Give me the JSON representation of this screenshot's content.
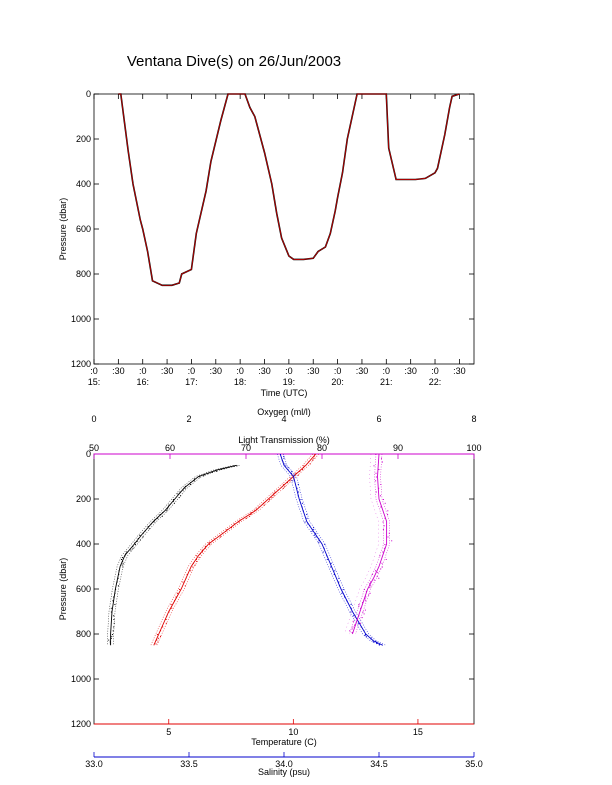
{
  "title": "Ventana Dive(s) on 26/Jun/2003",
  "colors": {
    "trace_dark": "#000000",
    "trace_red": "#e00000",
    "temperature": "#e00000",
    "salinity": "#0000cc",
    "oxygen": "#000000",
    "transmission": "#cc00cc"
  },
  "chart_data": [
    {
      "type": "line",
      "title": "Ventana Dive(s) on 26/Jun/2003",
      "xlabel": "Time (UTC)",
      "ylabel": "Pressure (dbar)",
      "xlim": [
        15.0,
        22.8
      ],
      "ylim": [
        1200,
        0
      ],
      "x_ticks": [
        {
          "top": ":0",
          "bottom": "15:",
          "v": 15.0
        },
        {
          "top": ":30",
          "bottom": "",
          "v": 15.5
        },
        {
          "top": ":0",
          "bottom": "16:",
          "v": 16.0
        },
        {
          "top": ":30",
          "bottom": "",
          "v": 16.5
        },
        {
          "top": ":0",
          "bottom": "17:",
          "v": 17.0
        },
        {
          "top": ":30",
          "bottom": "",
          "v": 17.5
        },
        {
          "top": ":0",
          "bottom": "18:",
          "v": 18.0
        },
        {
          "top": ":30",
          "bottom": "",
          "v": 18.5
        },
        {
          "top": ":0",
          "bottom": "19:",
          "v": 19.0
        },
        {
          "top": ":30",
          "bottom": "",
          "v": 19.5
        },
        {
          "top": ":0",
          "bottom": "20:",
          "v": 20.0
        },
        {
          "top": ":30",
          "bottom": "",
          "v": 20.5
        },
        {
          "top": ":0",
          "bottom": "21:",
          "v": 21.0
        },
        {
          "top": ":30",
          "bottom": "",
          "v": 21.5
        },
        {
          "top": ":0",
          "bottom": "22:",
          "v": 22.0
        },
        {
          "top": ":30",
          "bottom": "",
          "v": 22.5
        }
      ],
      "y_ticks": [
        "0",
        "200",
        "400",
        "600",
        "800",
        "1000",
        "1200"
      ],
      "y_tick_values": [
        0,
        200,
        400,
        600,
        800,
        1000,
        1200
      ],
      "series": [
        {
          "x": [
            15.5,
            15.55,
            15.7,
            15.8,
            15.95,
            16.0,
            16.1,
            16.2,
            16.4,
            16.6,
            16.75,
            16.8,
            17.0,
            17.1,
            17.3,
            17.4,
            17.6,
            17.75,
            17.85,
            18.05,
            18.1,
            18.2,
            18.3,
            18.5,
            18.65,
            18.75,
            18.85,
            19.0,
            19.1,
            19.3,
            19.5,
            19.6,
            19.75,
            19.85,
            19.95,
            20.0,
            20.1,
            20.2,
            20.4,
            20.65,
            20.75,
            20.9,
            21.0,
            21.05,
            21.2,
            21.4,
            21.6,
            21.8,
            22.0,
            22.05,
            22.2,
            22.3,
            22.35,
            22.5
          ],
          "y": [
            0,
            0,
            250,
            400,
            560,
            600,
            700,
            830,
            850,
            850,
            840,
            800,
            780,
            620,
            430,
            300,
            120,
            0,
            0,
            0,
            0,
            60,
            100,
            260,
            400,
            530,
            640,
            720,
            735,
            735,
            730,
            700,
            680,
            620,
            520,
            460,
            350,
            200,
            0,
            0,
            0,
            0,
            0,
            240,
            380,
            380,
            380,
            375,
            350,
            330,
            180,
            60,
            10,
            0
          ]
        }
      ]
    },
    {
      "type": "scatter",
      "ylabel": "Pressure (dbar)",
      "ylim": [
        1200,
        0
      ],
      "y_ticks": [
        "0",
        "200",
        "400",
        "600",
        "800",
        "1000",
        "1200"
      ],
      "y_tick_values": [
        0,
        200,
        400,
        600,
        800,
        1000,
        1200
      ],
      "axes": {
        "oxygen": {
          "label": "Oxygen (ml/l)",
          "lim": [
            0,
            8
          ],
          "ticks": [
            "0",
            "2",
            "4",
            "6",
            "8"
          ],
          "tick_values": [
            0,
            2,
            4,
            6,
            8
          ]
        },
        "transmission": {
          "label": "Light Transmission (%)",
          "lim": [
            50,
            100
          ],
          "ticks": [
            "50",
            "60",
            "70",
            "80",
            "90",
            "100"
          ],
          "tick_values": [
            50,
            60,
            70,
            80,
            90,
            100
          ]
        },
        "temperature": {
          "label": "Temperature (C)",
          "lim": [
            2,
            17.25
          ],
          "ticks": [
            "5",
            "10",
            "15"
          ],
          "tick_values": [
            5,
            10,
            15
          ]
        },
        "salinity": {
          "label": "Salinity (psu)",
          "lim": [
            33.0,
            35.0
          ],
          "ticks": [
            "33.0",
            "33.5",
            "34.0",
            "34.5",
            "35.0"
          ],
          "tick_values": [
            33.0,
            33.5,
            34.0,
            34.5,
            35.0
          ]
        }
      },
      "series": [
        {
          "axis": "oxygen",
          "values": [
            3.0,
            2.6,
            2.2,
            1.9,
            1.7,
            1.5,
            1.25,
            1.0,
            0.85,
            0.65,
            0.55,
            0.45,
            0.38,
            0.35,
            0.35
          ],
          "pressure": [
            50,
            70,
            100,
            150,
            200,
            250,
            300,
            360,
            400,
            450,
            500,
            600,
            700,
            800,
            850
          ]
        },
        {
          "axis": "temperature",
          "values": [
            10.9,
            10.5,
            10.0,
            9.5,
            9.0,
            8.5,
            7.8,
            7.2,
            6.6,
            6.2,
            5.9,
            5.5,
            5.0,
            4.6,
            4.4
          ],
          "pressure": [
            0,
            50,
            100,
            150,
            200,
            250,
            300,
            350,
            400,
            450,
            500,
            600,
            700,
            800,
            850
          ]
        },
        {
          "axis": "salinity",
          "values": [
            33.98,
            34.0,
            34.05,
            34.08,
            34.12,
            34.16,
            34.2,
            34.25,
            34.3,
            34.36,
            34.43,
            34.47,
            34.52
          ],
          "pressure": [
            0,
            50,
            100,
            200,
            300,
            350,
            400,
            500,
            600,
            700,
            800,
            830,
            850
          ]
        },
        {
          "axis": "transmission",
          "values": [
            87.5,
            87.3,
            87.5,
            88.5,
            88.5,
            87.5,
            86.8,
            86.0,
            85.5,
            85.0,
            84.5,
            84.0
          ],
          "pressure": [
            0,
            100,
            200,
            300,
            400,
            500,
            550,
            600,
            650,
            700,
            750,
            800
          ]
        }
      ]
    }
  ]
}
